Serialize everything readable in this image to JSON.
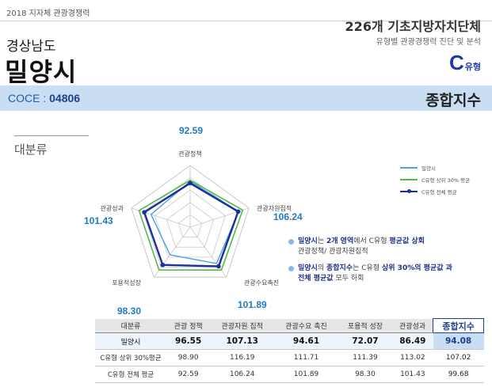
{
  "header": {
    "top_label": "2018 지자체 관광경쟁력",
    "province": "경상남도",
    "city": "밀양시",
    "count_title": "226개 기초지방자치단체",
    "count_sub": "유형별 관광경쟁력 진단 및 분석",
    "type_letter": "C",
    "type_suffix": "유형"
  },
  "coce_bar": {
    "label": "COCE : ",
    "code": "04806",
    "title": "종합지수"
  },
  "section": {
    "label": "대분류"
  },
  "notes": [
    {
      "line1_bold_a": "밀양시",
      "line1_text_a": "는 ",
      "line1_bold_b": "2개 영역",
      "line1_text_b": "에서 C유형 ",
      "line1_bold_c": "평균값 상회",
      "line2": "관광정책/ 관광자원집적"
    },
    {
      "line1_bold_a": "밀양시",
      "line1_text_a": "의 ",
      "line1_bold_b": "종합지수",
      "line1_text_b": "는 C유형 ",
      "line1_bold_c": "상위 30%의 평균값 과",
      "line2_bold": "전체 평균값",
      "line2_text": " 모두 하회"
    }
  ],
  "colors": {
    "city": "#4aa6dc",
    "top30": "#53b84a",
    "overall": "#1e2f9b",
    "grid": "#c8c8c8",
    "bubble": "#1f7ac0"
  },
  "chart_data": {
    "type": "radar",
    "axes": [
      "관광정책",
      "관광자원집적",
      "관광수요촉진",
      "포용적성장",
      "관광성과"
    ],
    "axis_bubbles": [
      "92.59",
      "106.24",
      "101.89",
      "98.30",
      "101.43"
    ],
    "rmax": 130,
    "rings": 5,
    "series": [
      {
        "name": "밀양시",
        "values": [
          96.55,
          107.13,
          94.61,
          72.07,
          86.49
        ]
      },
      {
        "name": "C유형 상위 30% 평균",
        "values": [
          98.9,
          116.19,
          111.71,
          111.39,
          113.02
        ]
      },
      {
        "name": "C유형 전체 평균",
        "values": [
          92.59,
          106.24,
          101.89,
          98.3,
          101.43
        ]
      }
    ]
  },
  "table": {
    "headers": [
      "대분류",
      "관광 정책",
      "관광자원 집적",
      "관광수요 촉진",
      "포용적 성장",
      "관광성과",
      "종합지수"
    ],
    "rows": [
      [
        "밀양시",
        "96.55",
        "107.13",
        "94.61",
        "72.07",
        "86.49",
        "94.08"
      ],
      [
        "C유형 상위 30%평균",
        "98.90",
        "116.19",
        "111.71",
        "111.39",
        "113.02",
        "107.02"
      ],
      [
        "C유형 전체 평균",
        "92.59",
        "106.24",
        "101.89",
        "98.30",
        "101.43",
        "99.68"
      ]
    ]
  }
}
